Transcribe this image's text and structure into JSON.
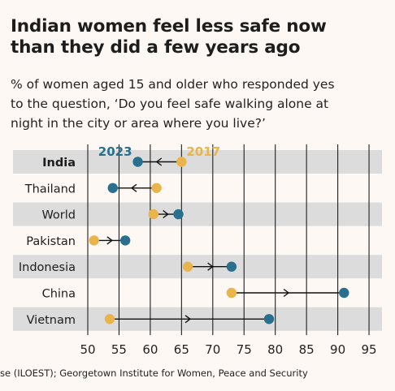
{
  "header": {
    "title_line1": "Indian women feel less safe now",
    "title_line2": "than they did a few years ago",
    "subtitle_line1": "% of women aged 15 and older who responded yes",
    "subtitle_line2": "to the question, ‘Do you feel safe walking alone at",
    "subtitle_line3": "night in the city or area where you live?’"
  },
  "footer": {
    "source": "se (ILOEST); Georgetown Institute for Women, Peace and Security"
  },
  "colors": {
    "series_2023": "#2a6f8e",
    "series_2017": "#e9b44c",
    "band": "#dcdcdc",
    "gridline": "#1f1f1f"
  },
  "chart_data": {
    "type": "dot_arrow",
    "categories": [
      "India",
      "Thailand",
      "World",
      "Pakistan",
      "Indonesia",
      "China",
      "Vietnam"
    ],
    "bold_category": "India",
    "series": [
      {
        "name": "2017",
        "values": [
          65,
          61,
          60.5,
          51,
          66,
          73,
          53.5
        ]
      },
      {
        "name": "2023",
        "values": [
          58,
          54,
          64.5,
          56,
          73,
          91,
          79
        ]
      }
    ],
    "x_ticks": [
      50,
      55,
      60,
      65,
      70,
      75,
      80,
      85,
      90,
      95
    ],
    "xlim": [
      50,
      95
    ],
    "grid": true,
    "legend": "inline-top"
  }
}
